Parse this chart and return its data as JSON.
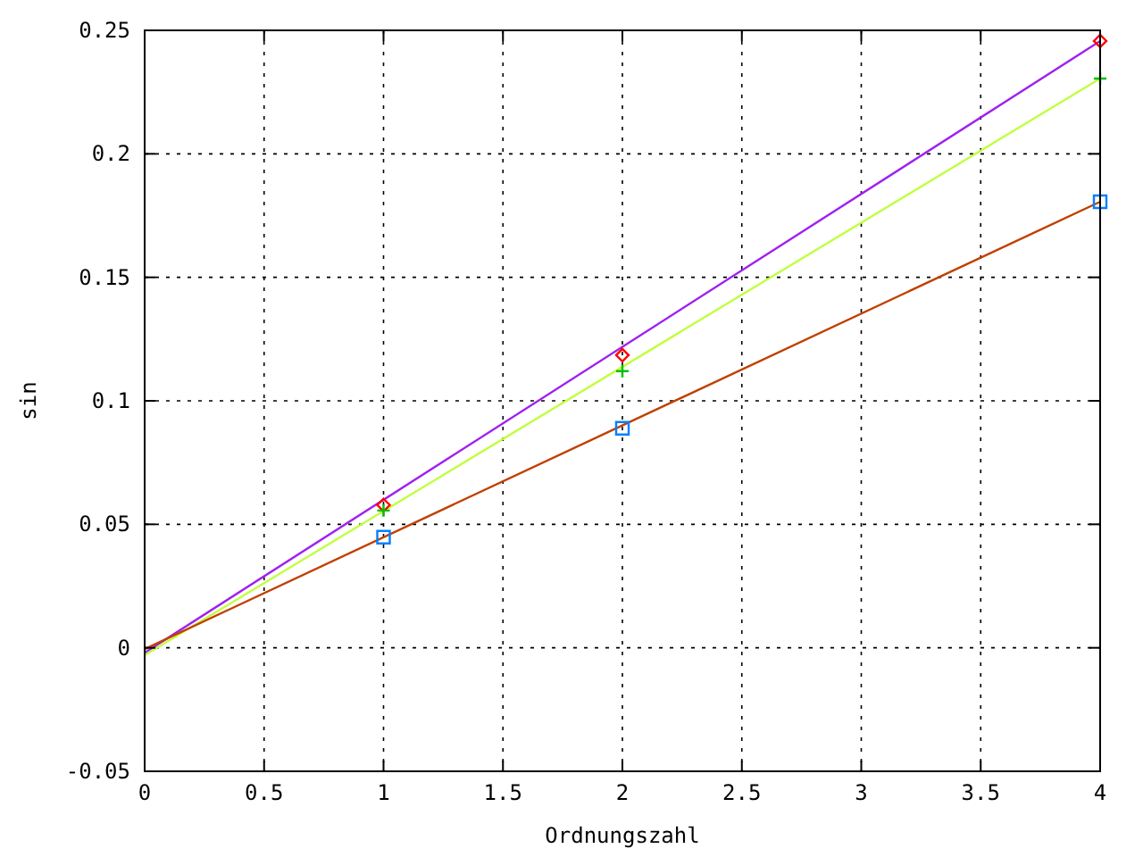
{
  "chart_data": {
    "type": "line",
    "xlabel": "Ordnungszahl",
    "ylabel": "sin",
    "xlim": [
      0,
      4
    ],
    "ylim": [
      -0.05,
      0.25
    ],
    "xticks": [
      0,
      0.5,
      1,
      1.5,
      2,
      2.5,
      3,
      3.5,
      4
    ],
    "yticks": [
      -0.05,
      0,
      0.05,
      0.1,
      0.15,
      0.2,
      0.25
    ],
    "grid": true,
    "series": [
      {
        "color": "#a020f0",
        "x": [
          0,
          4
        ],
        "values": [
          -0.002,
          0.2457
        ],
        "marker": "none"
      },
      {
        "color": "#c0ff3e",
        "x": [
          0,
          4
        ],
        "values": [
          -0.003,
          0.2305
        ],
        "marker": "none"
      },
      {
        "color": "#c04000",
        "x": [
          0,
          4
        ],
        "values": [
          -0.0005,
          0.1806
        ],
        "marker": "none"
      },
      {
        "type": "scatter",
        "color": "#ff0000",
        "x": [
          1,
          2,
          4
        ],
        "values": [
          0.0578,
          0.1185,
          0.2457
        ],
        "marker": "diamond"
      },
      {
        "type": "scatter",
        "color": "#00c000",
        "x": [
          1,
          2,
          4
        ],
        "values": [
          0.0556,
          0.112,
          0.2305
        ],
        "marker": "cross"
      },
      {
        "type": "scatter",
        "color": "#0080ff",
        "x": [
          1,
          2,
          4
        ],
        "values": [
          0.0448,
          0.0889,
          0.1806
        ],
        "marker": "square"
      }
    ]
  }
}
